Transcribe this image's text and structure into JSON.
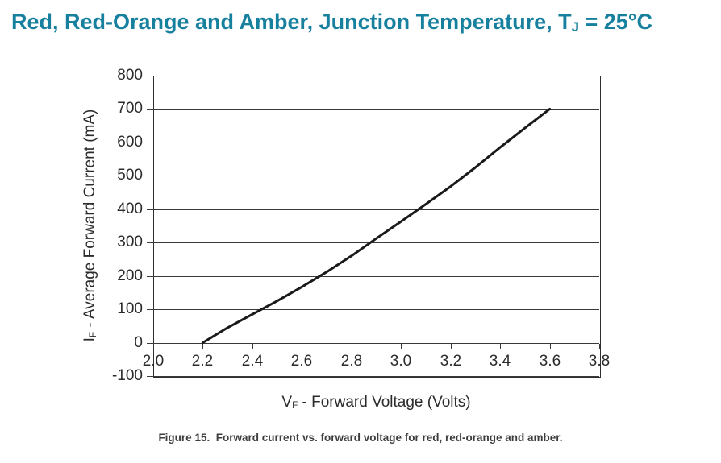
{
  "page": {
    "title_main": "Red, Red-Orange and Amber, Junction Temperature, T",
    "title_subscript": "J",
    "title_end": " = 25°C",
    "title_color": "#17809E",
    "caption": "Figure 15.  Forward current vs. forward voltage for red, red-orange and amber."
  },
  "axis_titles": {
    "y_pre": "I",
    "y_sub": "F",
    "y_post": " -  Average Forward Current (mA)",
    "x_pre": "V",
    "x_sub": "F",
    "x_post": " - Forward Voltage (Volts)"
  },
  "chart_data": {
    "type": "line",
    "title": "Red, Red-Orange and Amber, Junction Temperature, TJ = 25°C",
    "xlabel": "VF - Forward Voltage (Volts)",
    "ylabel": "IF - Average Forward Current (mA)",
    "xlim": [
      2.0,
      3.8
    ],
    "ylim": [
      -100,
      800
    ],
    "x_ticks": [
      "2.0",
      "2.2",
      "2.4",
      "2.6",
      "2.8",
      "3.0",
      "3.2",
      "3.4",
      "3.6",
      "3.8"
    ],
    "y_ticks": [
      "800",
      "700",
      "600",
      "500",
      "400",
      "300",
      "200",
      "100",
      "0",
      "-100"
    ],
    "grid": "horizontal-only",
    "legend": "none",
    "x_axis_cross_at": 0,
    "line_color": "#1a1a1a",
    "series": [
      {
        "name": "red, red-orange and amber",
        "x": [
          2.2,
          2.3,
          2.4,
          2.5,
          2.6,
          2.7,
          2.8,
          2.9,
          3.0,
          3.1,
          3.2,
          3.3,
          3.4,
          3.5,
          3.6
        ],
        "y": [
          0,
          45,
          85,
          125,
          167,
          212,
          260,
          312,
          363,
          415,
          468,
          525,
          585,
          643,
          700
        ]
      }
    ]
  }
}
